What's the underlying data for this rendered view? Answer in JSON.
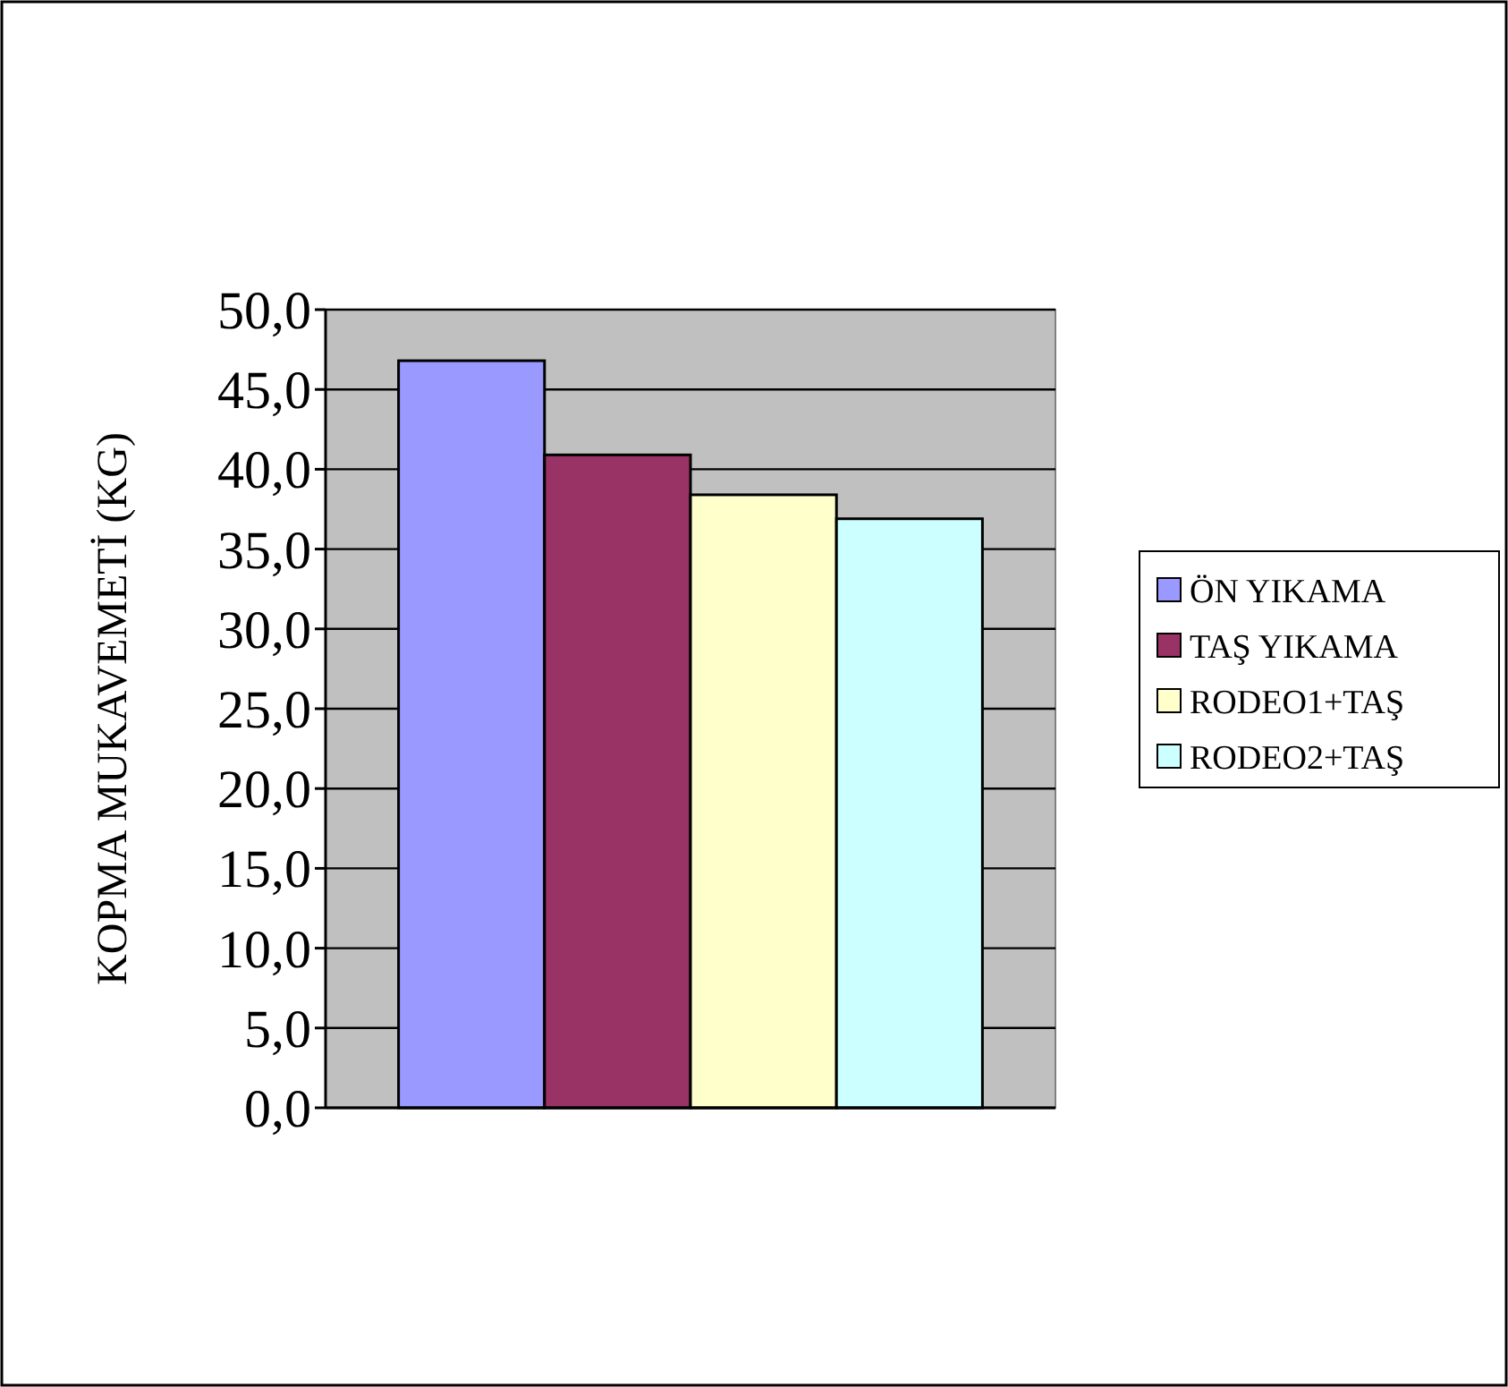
{
  "chart_data": {
    "type": "bar",
    "ylabel": "KOPMA MUKAVEMETİ (KG)",
    "categories": [
      null
    ],
    "series": [
      {
        "name": "ÖN YIKAMA",
        "color": "#9999ff",
        "values": [
          46.8
        ]
      },
      {
        "name": "TAŞ YIKAMA",
        "color": "#993366",
        "values": [
          40.9
        ]
      },
      {
        "name": "RODEO1+TAŞ",
        "color": "#ffffcc",
        "values": [
          38.4
        ]
      },
      {
        "name": "RODEO2+TAŞ",
        "color": "#ccffff",
        "values": [
          36.9
        ]
      }
    ],
    "ylim": [
      0,
      50
    ],
    "yticks": [
      {
        "value": 0,
        "label": "0,0"
      },
      {
        "value": 5,
        "label": "5,0"
      },
      {
        "value": 10,
        "label": "10,0"
      },
      {
        "value": 15,
        "label": "15,0"
      },
      {
        "value": 20,
        "label": "20,0"
      },
      {
        "value": 25,
        "label": "25,0"
      },
      {
        "value": 30,
        "label": "30,0"
      },
      {
        "value": 35,
        "label": "35,0"
      },
      {
        "value": 40,
        "label": "40,0"
      },
      {
        "value": 45,
        "label": "45,0"
      },
      {
        "value": 50,
        "label": "50,0"
      }
    ],
    "grid": "y",
    "legend": "right"
  }
}
